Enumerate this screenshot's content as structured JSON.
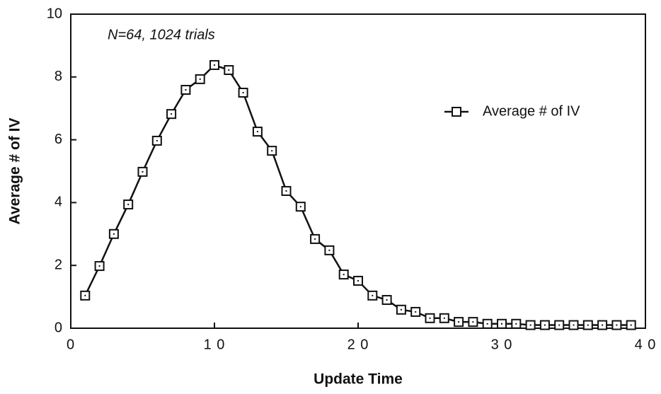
{
  "chart_data": {
    "type": "line",
    "annotation": "N=64,   1024 trials",
    "x_label": "Update Time",
    "y_label": "Average # of IV",
    "x": [
      1,
      2,
      3,
      4,
      5,
      6,
      7,
      8,
      9,
      10,
      11,
      12,
      13,
      14,
      15,
      16,
      17,
      18,
      19,
      20,
      21,
      22,
      23,
      24,
      25,
      26,
      27,
      28,
      29,
      30,
      31,
      32,
      33,
      34,
      35,
      36,
      37,
      38,
      39
    ],
    "series": [
      {
        "name": "Average # of IV",
        "color": "#111111",
        "values": [
          1.04,
          1.98,
          3.0,
          3.94,
          4.98,
          5.97,
          6.82,
          7.59,
          7.93,
          8.38,
          8.22,
          7.5,
          6.26,
          5.65,
          4.37,
          3.87,
          2.84,
          2.48,
          1.71,
          1.51,
          1.04,
          0.9,
          0.59,
          0.52,
          0.32,
          0.32,
          0.2,
          0.2,
          0.14,
          0.14,
          0.14,
          0.1,
          0.1,
          0.1,
          0.1,
          0.1,
          0.1,
          0.1,
          0.1
        ]
      }
    ],
    "xlim": [
      0,
      40
    ],
    "xticks": [
      0,
      {
        "value": 10,
        "label": "1 0"
      },
      {
        "value": 20,
        "label": "2 0"
      },
      {
        "value": 30,
        "label": "3 0"
      },
      {
        "value": 40,
        "label": "4 0"
      }
    ],
    "ylim": [
      0,
      10
    ],
    "yticks": [
      0,
      2,
      4,
      6,
      8,
      10
    ],
    "legend": "right"
  }
}
